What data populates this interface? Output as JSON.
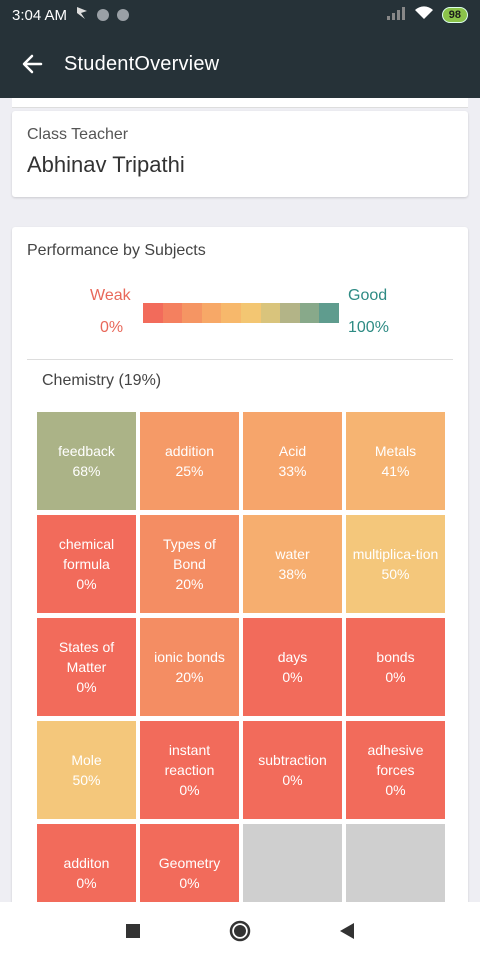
{
  "status_bar": {
    "time": "3:04 AM",
    "battery": "98"
  },
  "app_bar": {
    "title": "StudentOverview"
  },
  "teacher_card": {
    "label": "Class Teacher",
    "name": "Abhinav Tripathi"
  },
  "performance": {
    "title": "Performance by Subjects",
    "legend": {
      "weak_label": "Weak",
      "weak_pct": "0%",
      "good_label": "Good",
      "good_pct": "100%",
      "scale_colors": [
        "#f26b5b",
        "#f4805f",
        "#f59563",
        "#f7a867",
        "#f7b86b",
        "#f3c672",
        "#d9c47c",
        "#b3b487",
        "#88a98a",
        "#5f9c8e"
      ]
    },
    "subject_title": "Chemistry (19%)",
    "tiles": [
      {
        "name": "feedback",
        "pct": "68%",
        "color": "#abb387"
      },
      {
        "name": "addition",
        "pct": "25%",
        "color": "#f59a67"
      },
      {
        "name": "Acid",
        "pct": "33%",
        "color": "#f6a56b"
      },
      {
        "name": "Metals",
        "pct": "41%",
        "color": "#f6b472"
      },
      {
        "name": "chemical formula",
        "pct": "0%",
        "color": "#f26b5b"
      },
      {
        "name": "Types of Bond",
        "pct": "20%",
        "color": "#f48d63"
      },
      {
        "name": "water",
        "pct": "38%",
        "color": "#f6ae6f"
      },
      {
        "name": "multiplica-tion",
        "pct": "50%",
        "color": "#f4c77b"
      },
      {
        "name": "States of Matter",
        "pct": "0%",
        "color": "#f26b5b"
      },
      {
        "name": "ionic bonds",
        "pct": "20%",
        "color": "#f48d63"
      },
      {
        "name": "days",
        "pct": "0%",
        "color": "#f26b5b"
      },
      {
        "name": "bonds",
        "pct": "0%",
        "color": "#f26b5b"
      },
      {
        "name": "Mole",
        "pct": "50%",
        "color": "#f4c77b"
      },
      {
        "name": "instant reaction",
        "pct": "0%",
        "color": "#f26b5b"
      },
      {
        "name": "subtraction",
        "pct": "0%",
        "color": "#f26b5b"
      },
      {
        "name": "adhesive forces",
        "pct": "0%",
        "color": "#f26b5b"
      },
      {
        "name": "additon",
        "pct": "0%",
        "color": "#f26b5b"
      },
      {
        "name": "Geometry",
        "pct": "0%",
        "color": "#f26b5b"
      },
      {
        "name": "",
        "pct": "",
        "color": ""
      },
      {
        "name": "",
        "pct": "",
        "color": ""
      }
    ]
  },
  "nav_bar": {
    "recents_icon": "square-icon",
    "home_icon": "circle-icon",
    "back_icon": "triangle-back-icon"
  }
}
